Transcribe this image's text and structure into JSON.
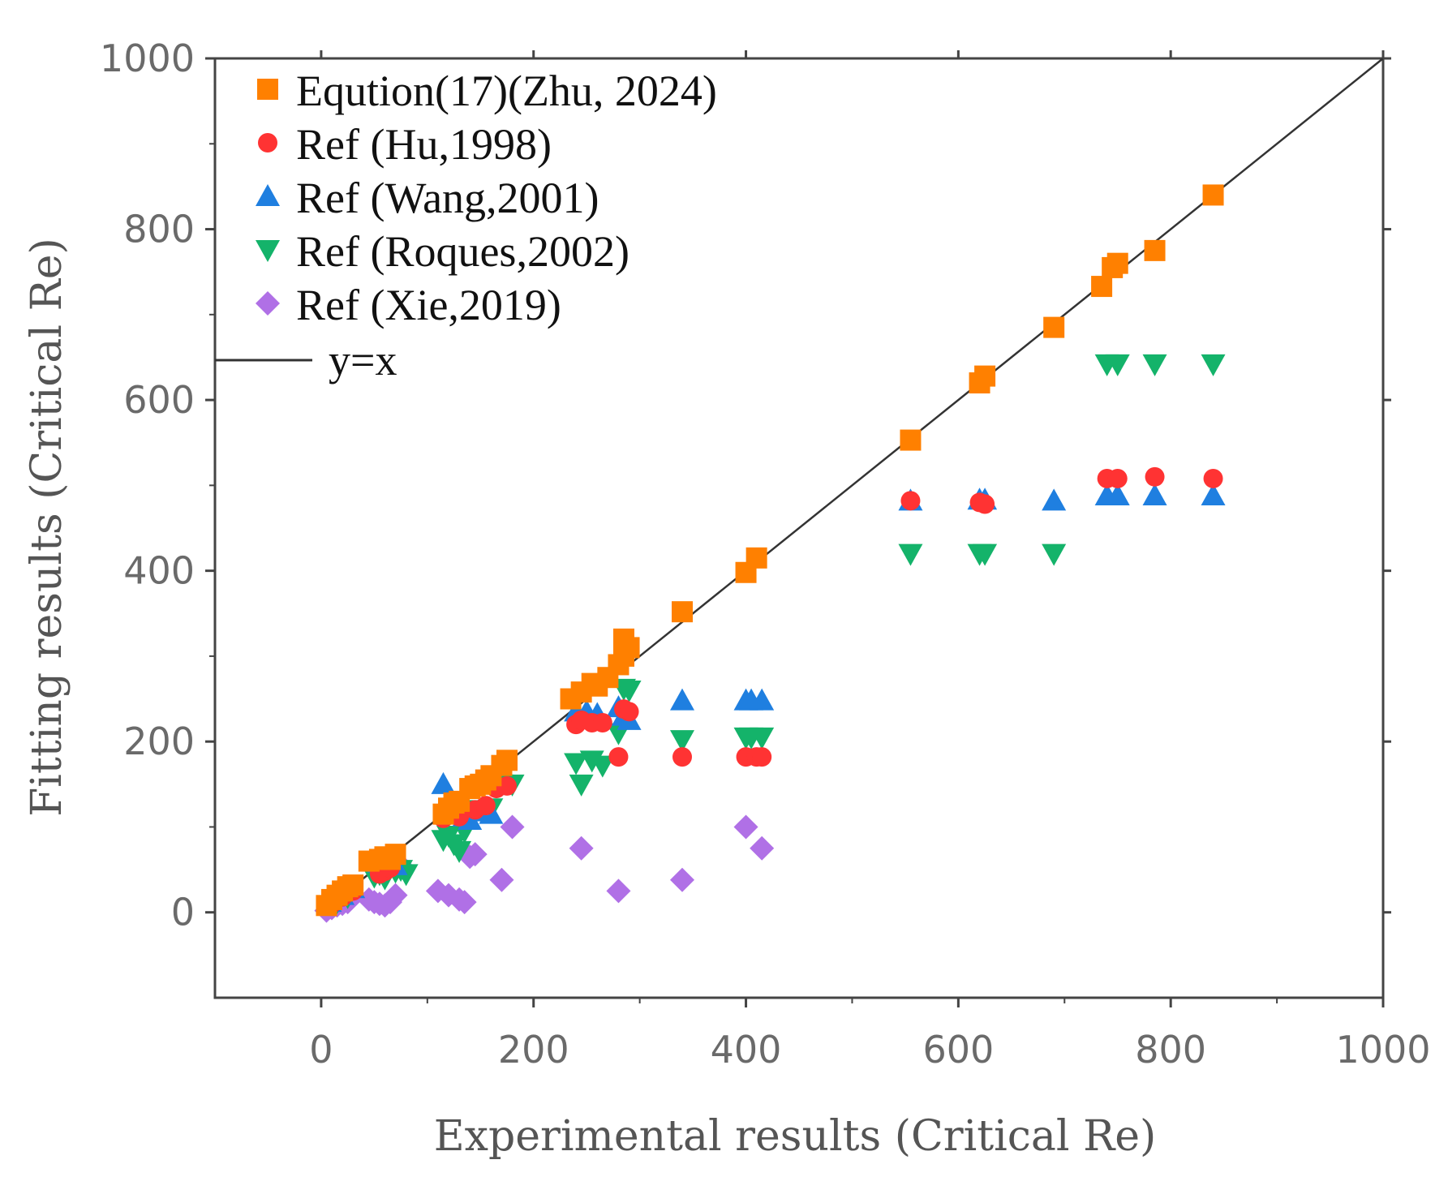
{
  "chart_data": {
    "type": "scatter",
    "xlabel": "Experimental results (Critical Re)",
    "ylabel": "Fitting results (Critical Re)",
    "xlim": [
      -100,
      1000
    ],
    "ylim": [
      -100,
      1000
    ],
    "x_ticks": [
      0,
      200,
      400,
      600,
      800,
      1000
    ],
    "y_ticks": [
      0,
      200,
      400,
      600,
      800,
      1000
    ],
    "x_tick_labels": [
      "0",
      "200",
      "400",
      "600",
      "800",
      "1000"
    ],
    "y_tick_labels": [
      "0",
      "200",
      "400",
      "600",
      "800",
      "1000"
    ],
    "legend_position": "top-left",
    "series": [
      {
        "name": "Eqution(17)(Zhu, 2024)",
        "marker": "square",
        "color": "#ff8000",
        "points": [
          [
            5,
            8
          ],
          [
            10,
            15
          ],
          [
            15,
            20
          ],
          [
            20,
            25
          ],
          [
            25,
            30
          ],
          [
            30,
            32
          ],
          [
            45,
            60
          ],
          [
            55,
            62
          ],
          [
            60,
            65
          ],
          [
            65,
            62
          ],
          [
            70,
            68
          ],
          [
            115,
            115
          ],
          [
            120,
            122
          ],
          [
            125,
            128
          ],
          [
            130,
            130
          ],
          [
            140,
            145
          ],
          [
            145,
            148
          ],
          [
            150,
            150
          ],
          [
            155,
            155
          ],
          [
            160,
            160
          ],
          [
            170,
            172
          ],
          [
            175,
            178
          ],
          [
            235,
            250
          ],
          [
            245,
            258
          ],
          [
            255,
            268
          ],
          [
            260,
            265
          ],
          [
            270,
            275
          ],
          [
            280,
            290
          ],
          [
            285,
            300
          ],
          [
            285,
            320
          ],
          [
            290,
            310
          ],
          [
            340,
            352
          ],
          [
            400,
            398
          ],
          [
            410,
            415
          ],
          [
            555,
            553
          ],
          [
            620,
            620
          ],
          [
            625,
            628
          ],
          [
            690,
            685
          ],
          [
            735,
            733
          ],
          [
            745,
            755
          ],
          [
            750,
            760
          ],
          [
            785,
            775
          ],
          [
            840,
            840
          ]
        ]
      },
      {
        "name": "Ref  (Hu,1998)",
        "marker": "circle",
        "color": "#ff3333",
        "points": [
          [
            10,
            10
          ],
          [
            20,
            18
          ],
          [
            30,
            25
          ],
          [
            55,
            45
          ],
          [
            60,
            48
          ],
          [
            65,
            52
          ],
          [
            115,
            110
          ],
          [
            120,
            118
          ],
          [
            125,
            115
          ],
          [
            130,
            112
          ],
          [
            145,
            120
          ],
          [
            155,
            125
          ],
          [
            165,
            145
          ],
          [
            175,
            148
          ],
          [
            240,
            220
          ],
          [
            245,
            225
          ],
          [
            255,
            222
          ],
          [
            265,
            222
          ],
          [
            280,
            182
          ],
          [
            285,
            238
          ],
          [
            290,
            235
          ],
          [
            340,
            182
          ],
          [
            400,
            182
          ],
          [
            410,
            182
          ],
          [
            415,
            182
          ],
          [
            555,
            482
          ],
          [
            620,
            480
          ],
          [
            625,
            478
          ],
          [
            740,
            508
          ],
          [
            750,
            508
          ],
          [
            785,
            510
          ],
          [
            840,
            508
          ]
        ]
      },
      {
        "name": "Ref  (Wang,2001)",
        "marker": "triangle-up",
        "color": "#1f7fe0",
        "points": [
          [
            8,
            12
          ],
          [
            20,
            20
          ],
          [
            30,
            28
          ],
          [
            55,
            58
          ],
          [
            60,
            60
          ],
          [
            70,
            55
          ],
          [
            115,
            150
          ],
          [
            120,
            125
          ],
          [
            130,
            120
          ],
          [
            135,
            112
          ],
          [
            140,
            108
          ],
          [
            150,
            118
          ],
          [
            155,
            120
          ],
          [
            160,
            115
          ],
          [
            240,
            235
          ],
          [
            250,
            235
          ],
          [
            260,
            232
          ],
          [
            280,
            240
          ],
          [
            285,
            230
          ],
          [
            290,
            225
          ],
          [
            340,
            248
          ],
          [
            400,
            248
          ],
          [
            405,
            248
          ],
          [
            415,
            248
          ],
          [
            555,
            482
          ],
          [
            620,
            483
          ],
          [
            625,
            483
          ],
          [
            690,
            482
          ],
          [
            740,
            488
          ],
          [
            750,
            488
          ],
          [
            785,
            488
          ],
          [
            840,
            488
          ]
        ]
      },
      {
        "name": "Ref  (Roques,2002)",
        "marker": "triangle-down",
        "color": "#14b36a",
        "points": [
          [
            15,
            12
          ],
          [
            25,
            18
          ],
          [
            50,
            42
          ],
          [
            55,
            45
          ],
          [
            60,
            40
          ],
          [
            70,
            48
          ],
          [
            75,
            50
          ],
          [
            80,
            45
          ],
          [
            115,
            85
          ],
          [
            120,
            90
          ],
          [
            125,
            80
          ],
          [
            130,
            72
          ],
          [
            135,
            95
          ],
          [
            140,
            110
          ],
          [
            150,
            120
          ],
          [
            160,
            122
          ],
          [
            170,
            150
          ],
          [
            180,
            150
          ],
          [
            240,
            175
          ],
          [
            245,
            150
          ],
          [
            255,
            178
          ],
          [
            265,
            172
          ],
          [
            280,
            210
          ],
          [
            285,
            262
          ],
          [
            290,
            260
          ],
          [
            340,
            202
          ],
          [
            400,
            205
          ],
          [
            405,
            205
          ],
          [
            415,
            205
          ],
          [
            555,
            420
          ],
          [
            620,
            420
          ],
          [
            625,
            420
          ],
          [
            690,
            420
          ],
          [
            740,
            642
          ],
          [
            750,
            642
          ],
          [
            785,
            642
          ],
          [
            840,
            642
          ]
        ]
      },
      {
        "name": "Ref  (Xie,2019)",
        "marker": "diamond",
        "color": "#b070e6",
        "points": [
          [
            5,
            2
          ],
          [
            10,
            5
          ],
          [
            15,
            8
          ],
          [
            20,
            10
          ],
          [
            25,
            12
          ],
          [
            45,
            15
          ],
          [
            50,
            12
          ],
          [
            55,
            10
          ],
          [
            60,
            8
          ],
          [
            65,
            12
          ],
          [
            70,
            20
          ],
          [
            75,
            55
          ],
          [
            110,
            25
          ],
          [
            120,
            20
          ],
          [
            130,
            15
          ],
          [
            135,
            12
          ],
          [
            140,
            65
          ],
          [
            145,
            68
          ],
          [
            170,
            38
          ],
          [
            180,
            100
          ],
          [
            245,
            75
          ],
          [
            280,
            25
          ],
          [
            340,
            38
          ],
          [
            400,
            100
          ],
          [
            415,
            75
          ]
        ]
      },
      {
        "name": "y=x",
        "marker": "line",
        "color": "#333333",
        "points": [
          [
            0,
            0
          ],
          [
            1000,
            1000
          ]
        ]
      }
    ]
  }
}
